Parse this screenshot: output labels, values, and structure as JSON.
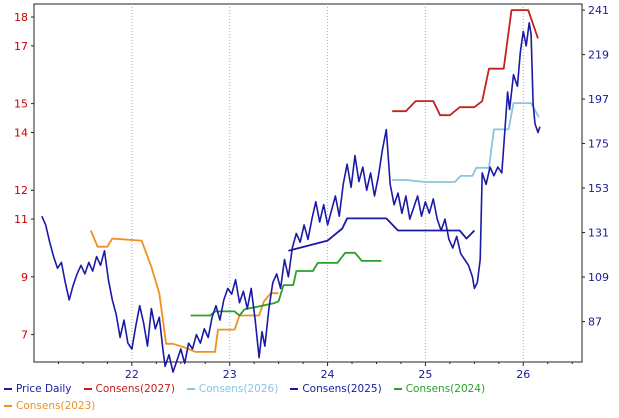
{
  "chart_data": {
    "type": "line",
    "title": "",
    "xlabel": "",
    "ylabel": "",
    "x_ticks": [
      "22",
      "23",
      "24",
      "25",
      "26"
    ],
    "x_range": [
      2021.0,
      2026.6
    ],
    "left_axis": {
      "ticks": [
        "7",
        "9",
        "11",
        "12",
        "14",
        "15",
        "17",
        "18"
      ],
      "tick_values": [
        7,
        9,
        11,
        12,
        14,
        15,
        17,
        18
      ],
      "range": [
        6.05,
        18.45
      ],
      "color": "#cc0000"
    },
    "right_axis": {
      "ticks": [
        "87",
        "109",
        "131",
        "153",
        "175",
        "197",
        "219",
        "241"
      ],
      "tick_values": [
        87,
        109,
        131,
        153,
        175,
        197,
        219,
        241
      ],
      "range": [
        67,
        244
      ],
      "color": "#1a1a99"
    },
    "grid": "vertical-dotted",
    "legend_position": "bottom",
    "series": [
      {
        "name": "Price Daily",
        "axis": "left",
        "color": "#1a1aa6",
        "points": [
          [
            2021.08,
            11.1
          ],
          [
            2021.12,
            10.8
          ],
          [
            2021.16,
            10.2
          ],
          [
            2021.2,
            9.7
          ],
          [
            2021.24,
            9.3
          ],
          [
            2021.28,
            9.5
          ],
          [
            2021.32,
            8.8
          ],
          [
            2021.36,
            8.2
          ],
          [
            2021.4,
            8.7
          ],
          [
            2021.44,
            9.1
          ],
          [
            2021.48,
            9.4
          ],
          [
            2021.52,
            9.1
          ],
          [
            2021.56,
            9.5
          ],
          [
            2021.6,
            9.2
          ],
          [
            2021.64,
            9.7
          ],
          [
            2021.68,
            9.4
          ],
          [
            2021.72,
            9.9
          ],
          [
            2021.76,
            8.9
          ],
          [
            2021.8,
            8.2
          ],
          [
            2021.84,
            7.7
          ],
          [
            2021.88,
            6.9
          ],
          [
            2021.92,
            7.5
          ],
          [
            2021.96,
            6.7
          ],
          [
            2022.0,
            6.5
          ],
          [
            2022.04,
            7.3
          ],
          [
            2022.08,
            8.0
          ],
          [
            2022.12,
            7.4
          ],
          [
            2022.16,
            6.6
          ],
          [
            2022.2,
            7.9
          ],
          [
            2022.24,
            7.2
          ],
          [
            2022.28,
            7.6
          ],
          [
            2022.32,
            6.4
          ],
          [
            2022.34,
            5.9
          ],
          [
            2022.38,
            6.3
          ],
          [
            2022.42,
            5.7
          ],
          [
            2022.46,
            6.1
          ],
          [
            2022.5,
            6.5
          ],
          [
            2022.54,
            6.0
          ],
          [
            2022.58,
            6.7
          ],
          [
            2022.62,
            6.5
          ],
          [
            2022.66,
            7.0
          ],
          [
            2022.7,
            6.7
          ],
          [
            2022.74,
            7.2
          ],
          [
            2022.78,
            6.9
          ],
          [
            2022.82,
            7.6
          ],
          [
            2022.86,
            8.0
          ],
          [
            2022.9,
            7.5
          ],
          [
            2022.94,
            8.2
          ],
          [
            2022.98,
            8.6
          ],
          [
            2023.02,
            8.4
          ],
          [
            2023.06,
            8.9
          ],
          [
            2023.1,
            8.1
          ],
          [
            2023.14,
            8.5
          ],
          [
            2023.18,
            7.9
          ],
          [
            2023.22,
            8.6
          ],
          [
            2023.26,
            7.5
          ],
          [
            2023.3,
            6.2
          ],
          [
            2023.33,
            7.1
          ],
          [
            2023.36,
            6.6
          ],
          [
            2023.4,
            7.9
          ],
          [
            2023.44,
            8.8
          ],
          [
            2023.48,
            9.1
          ],
          [
            2023.52,
            8.6
          ],
          [
            2023.56,
            9.6
          ],
          [
            2023.6,
            9.0
          ],
          [
            2023.64,
            10.0
          ],
          [
            2023.68,
            10.5
          ],
          [
            2023.72,
            10.2
          ],
          [
            2023.76,
            10.8
          ],
          [
            2023.8,
            10.3
          ],
          [
            2023.84,
            11.0
          ],
          [
            2023.88,
            11.6
          ],
          [
            2023.92,
            10.9
          ],
          [
            2023.96,
            11.5
          ],
          [
            2024.0,
            10.8
          ],
          [
            2024.04,
            11.3
          ],
          [
            2024.08,
            11.8
          ],
          [
            2024.12,
            11.1
          ],
          [
            2024.16,
            12.2
          ],
          [
            2024.2,
            12.9
          ],
          [
            2024.24,
            12.1
          ],
          [
            2024.28,
            13.2
          ],
          [
            2024.32,
            12.3
          ],
          [
            2024.36,
            12.8
          ],
          [
            2024.4,
            12.0
          ],
          [
            2024.44,
            12.6
          ],
          [
            2024.48,
            11.8
          ],
          [
            2024.52,
            12.5
          ],
          [
            2024.56,
            13.4
          ],
          [
            2024.6,
            14.1
          ],
          [
            2024.64,
            12.2
          ],
          [
            2024.68,
            11.5
          ],
          [
            2024.72,
            11.9
          ],
          [
            2024.76,
            11.2
          ],
          [
            2024.8,
            11.8
          ],
          [
            2024.84,
            11.0
          ],
          [
            2024.88,
            11.4
          ],
          [
            2024.92,
            11.8
          ],
          [
            2024.96,
            11.1
          ],
          [
            2025.0,
            11.6
          ],
          [
            2025.04,
            11.2
          ],
          [
            2025.08,
            11.7
          ],
          [
            2025.12,
            11.0
          ],
          [
            2025.16,
            10.6
          ],
          [
            2025.2,
            11.0
          ],
          [
            2025.24,
            10.3
          ],
          [
            2025.28,
            10.0
          ],
          [
            2025.32,
            10.4
          ],
          [
            2025.36,
            9.8
          ],
          [
            2025.4,
            9.6
          ],
          [
            2025.44,
            9.4
          ],
          [
            2025.48,
            9.0
          ],
          [
            2025.5,
            8.6
          ],
          [
            2025.53,
            8.8
          ],
          [
            2025.56,
            9.6
          ],
          [
            2025.58,
            12.6
          ],
          [
            2025.62,
            12.2
          ],
          [
            2025.66,
            12.8
          ],
          [
            2025.7,
            12.5
          ],
          [
            2025.74,
            12.8
          ],
          [
            2025.78,
            12.6
          ],
          [
            2025.8,
            13.5
          ],
          [
            2025.84,
            15.4
          ],
          [
            2025.86,
            14.8
          ],
          [
            2025.9,
            16.0
          ],
          [
            2025.94,
            15.6
          ],
          [
            2025.97,
            16.8
          ],
          [
            2026.0,
            17.5
          ],
          [
            2026.03,
            17.0
          ],
          [
            2026.06,
            17.8
          ],
          [
            2026.08,
            17.4
          ],
          [
            2026.1,
            15.0
          ],
          [
            2026.12,
            14.3
          ],
          [
            2026.15,
            14.0
          ],
          [
            2026.17,
            14.2
          ]
        ]
      },
      {
        "name": "Consens(2027)",
        "axis": "right",
        "color": "#c42020",
        "points": [
          [
            2024.66,
            191
          ],
          [
            2024.8,
            191
          ],
          [
            2024.9,
            196
          ],
          [
            2025.08,
            196
          ],
          [
            2025.15,
            189
          ],
          [
            2025.25,
            189
          ],
          [
            2025.35,
            193
          ],
          [
            2025.5,
            193
          ],
          [
            2025.58,
            196
          ],
          [
            2025.65,
            212
          ],
          [
            2025.8,
            212
          ],
          [
            2025.88,
            241
          ],
          [
            2026.05,
            241
          ],
          [
            2026.15,
            227
          ]
        ]
      },
      {
        "name": "Consens(2026)",
        "axis": "right",
        "color": "#87c6e0",
        "points": [
          [
            2024.66,
            157
          ],
          [
            2024.8,
            157
          ],
          [
            2025.0,
            156
          ],
          [
            2025.3,
            156
          ],
          [
            2025.36,
            159
          ],
          [
            2025.48,
            159
          ],
          [
            2025.52,
            163
          ],
          [
            2025.65,
            163
          ],
          [
            2025.7,
            182
          ],
          [
            2025.85,
            182
          ],
          [
            2025.9,
            195
          ],
          [
            2026.08,
            195
          ],
          [
            2026.16,
            188
          ]
        ]
      },
      {
        "name": "Consens(2025)",
        "axis": "right",
        "color": "#1a1aa6",
        "points": [
          [
            2023.6,
            122
          ],
          [
            2024.0,
            127
          ],
          [
            2024.15,
            133
          ],
          [
            2024.2,
            138
          ],
          [
            2024.6,
            138
          ],
          [
            2024.72,
            132
          ],
          [
            2025.35,
            132
          ],
          [
            2025.42,
            128
          ],
          [
            2025.5,
            132
          ]
        ]
      },
      {
        "name": "Consens(2024)",
        "axis": "right",
        "color": "#2aa02a",
        "points": [
          [
            2022.6,
            90
          ],
          [
            2022.8,
            90
          ],
          [
            2022.85,
            92
          ],
          [
            2023.05,
            92
          ],
          [
            2023.1,
            90
          ],
          [
            2023.15,
            93
          ],
          [
            2023.45,
            96
          ],
          [
            2023.5,
            97
          ],
          [
            2023.55,
            105
          ],
          [
            2023.65,
            105
          ],
          [
            2023.68,
            112
          ],
          [
            2023.85,
            112
          ],
          [
            2023.9,
            116
          ],
          [
            2024.1,
            116
          ],
          [
            2024.18,
            121
          ],
          [
            2024.28,
            121
          ],
          [
            2024.35,
            117
          ],
          [
            2024.55,
            117
          ]
        ]
      },
      {
        "name": "Consens(2023)",
        "axis": "right",
        "color": "#f0901e",
        "points": [
          [
            2021.58,
            132
          ],
          [
            2021.65,
            124
          ],
          [
            2021.75,
            124
          ],
          [
            2021.8,
            128
          ],
          [
            2022.1,
            127
          ],
          [
            2022.2,
            114
          ],
          [
            2022.28,
            101
          ],
          [
            2022.35,
            76
          ],
          [
            2022.42,
            76
          ],
          [
            2022.55,
            74
          ],
          [
            2022.65,
            72
          ],
          [
            2022.85,
            72
          ],
          [
            2022.88,
            83
          ],
          [
            2023.05,
            83
          ],
          [
            2023.1,
            90
          ],
          [
            2023.3,
            90
          ],
          [
            2023.35,
            97
          ],
          [
            2023.42,
            101
          ],
          [
            2023.5,
            101
          ]
        ]
      }
    ]
  }
}
